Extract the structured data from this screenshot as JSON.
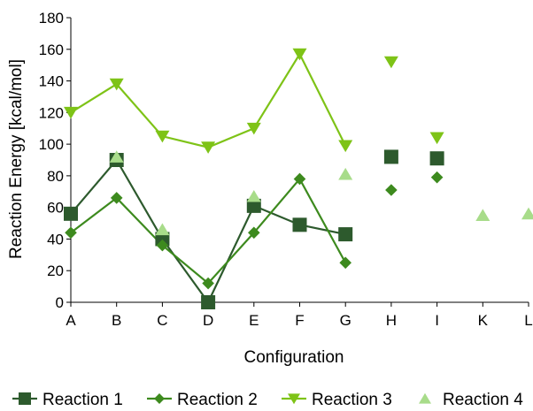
{
  "chart_data": {
    "type": "line",
    "title": "",
    "xlabel": "Configuration",
    "ylabel": "Reaction Energy [kcal/mol]",
    "ylim": [
      0,
      180
    ],
    "yticks": [
      0,
      20,
      40,
      60,
      80,
      100,
      120,
      140,
      160,
      180
    ],
    "categories": [
      "A",
      "B",
      "C",
      "D",
      "E",
      "F",
      "G",
      "H",
      "I",
      "K",
      "L"
    ],
    "grid": false,
    "legend_position": "bottom",
    "series": [
      {
        "name": "Reaction 1",
        "marker": "square",
        "color": "#2d5a2d",
        "line": true,
        "values": [
          56,
          90,
          40,
          0,
          61,
          49,
          43,
          92,
          91,
          null,
          null
        ]
      },
      {
        "name": "Reaction 2",
        "marker": "diamond",
        "color": "#3d8a1e",
        "line": true,
        "values": [
          44,
          66,
          36,
          12,
          44,
          78,
          25,
          71,
          79,
          null,
          null
        ]
      },
      {
        "name": "Reaction 3",
        "marker": "triangle-down",
        "color": "#7ec317",
        "line": true,
        "values": [
          120,
          138,
          105,
          98,
          110,
          157,
          99,
          152,
          104,
          null,
          null
        ]
      },
      {
        "name": "Reaction 4",
        "marker": "triangle-up",
        "color": "#a8dc8a",
        "line": false,
        "values": [
          null,
          92,
          46,
          null,
          67,
          null,
          81,
          null,
          null,
          55,
          56
        ]
      }
    ]
  }
}
